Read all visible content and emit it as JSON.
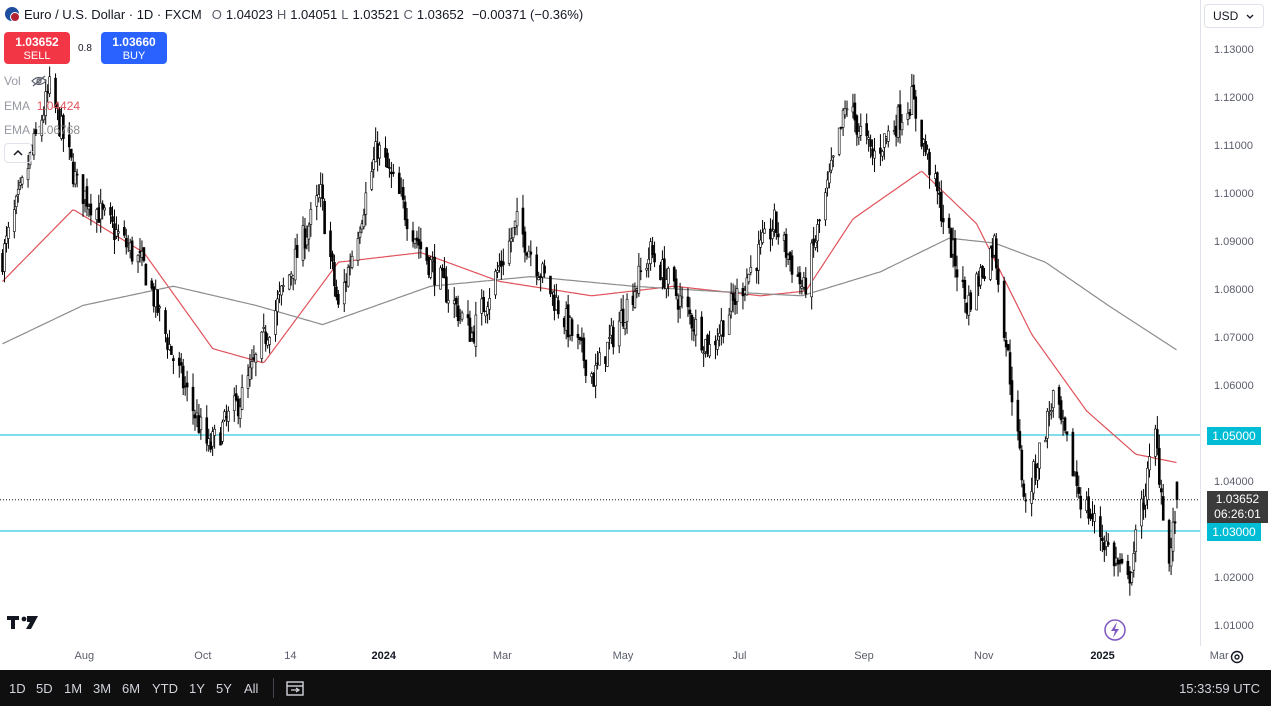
{
  "header": {
    "symbol_title": "Euro / U.S. Dollar · 1D · FXCM",
    "o_label": "O",
    "o_value": "1.04023",
    "h_label": "H",
    "h_value": "1.04051",
    "l_label": "L",
    "l_value": "1.03521",
    "c_label": "C",
    "c_value": "1.03652",
    "change": "−0.00371 (−0.36%)"
  },
  "trade": {
    "sell_price": "1.03652",
    "sell_label": "SELL",
    "spread": "0.8",
    "buy_price": "1.03660",
    "buy_label": "BUY"
  },
  "indicators": {
    "vol_label": "Vol",
    "ema1_label": "EMA",
    "ema1_value": "1.04424",
    "ema2_label": "EMA",
    "ema2_value": "1.06768"
  },
  "currency": {
    "label": "USD"
  },
  "price_tags": {
    "level_upper": "1.05000",
    "current": "1.03652",
    "countdown": "06:26:01",
    "level_lower": "1.03000"
  },
  "colors": {
    "level_line": "#00bcd4",
    "ema_fast": "#e0525a",
    "ema_slow": "#8c8c8c",
    "sell": "#f23645",
    "buy": "#2962ff",
    "candles": "#000000"
  },
  "toolbar": {
    "timeframes": [
      "1D",
      "5D",
      "1M",
      "3M",
      "6M",
      "YTD",
      "1Y",
      "5Y",
      "All"
    ],
    "clock": "15:33:59 UTC"
  },
  "chart_data": {
    "type": "candlestick",
    "title": "Euro / U.S. Dollar · 1D · FXCM",
    "ylim": [
      1.0,
      1.135
    ],
    "y_ticks": [
      "1.13000",
      "1.12000",
      "1.11000",
      "1.10000",
      "1.09000",
      "1.08000",
      "1.07000",
      "1.06000",
      "1.05000",
      "1.04000",
      "1.03000",
      "1.02000",
      "1.01000"
    ],
    "x_tick_labels": [
      "Aug",
      "Oct",
      "14",
      "2024",
      "Mar",
      "May",
      "Jul",
      "Sep",
      "Nov",
      "2025",
      "Mar"
    ],
    "horizontal_levels": [
      1.05,
      1.03
    ],
    "last_price": 1.03652,
    "close_path": [
      {
        "date": "2023-06-20",
        "close": 1.087
      },
      {
        "date": "2023-07-14",
        "close": 1.122
      },
      {
        "date": "2023-07-28",
        "close": 1.102
      },
      {
        "date": "2023-08-31",
        "close": 1.085
      },
      {
        "date": "2023-09-15",
        "close": 1.066
      },
      {
        "date": "2023-10-03",
        "close": 1.047
      },
      {
        "date": "2023-10-20",
        "close": 1.058
      },
      {
        "date": "2023-11-03",
        "close": 1.073
      },
      {
        "date": "2023-11-29",
        "close": 1.1
      },
      {
        "date": "2023-12-08",
        "close": 1.076
      },
      {
        "date": "2023-12-28",
        "close": 1.11
      },
      {
        "date": "2024-01-19",
        "close": 1.089
      },
      {
        "date": "2024-02-14",
        "close": 1.071
      },
      {
        "date": "2024-03-08",
        "close": 1.094
      },
      {
        "date": "2024-04-16",
        "close": 1.062
      },
      {
        "date": "2024-05-15",
        "close": 1.088
      },
      {
        "date": "2024-06-14",
        "close": 1.068
      },
      {
        "date": "2024-07-17",
        "close": 1.094
      },
      {
        "date": "2024-08-01",
        "close": 1.08
      },
      {
        "date": "2024-08-23",
        "close": 1.119
      },
      {
        "date": "2024-09-05",
        "close": 1.108
      },
      {
        "date": "2024-09-25",
        "close": 1.12
      },
      {
        "date": "2024-10-23",
        "close": 1.077
      },
      {
        "date": "2024-11-06",
        "close": 1.09
      },
      {
        "date": "2024-11-22",
        "close": 1.035
      },
      {
        "date": "2024-12-06",
        "close": 1.058
      },
      {
        "date": "2024-12-20",
        "close": 1.037
      },
      {
        "date": "2025-01-13",
        "close": 1.019
      },
      {
        "date": "2025-01-27",
        "close": 1.05
      },
      {
        "date": "2025-02-03",
        "close": 1.023
      },
      {
        "date": "2025-02-07",
        "close": 1.0365
      }
    ],
    "series": [
      {
        "name": "EMA",
        "last_value": 1.04424,
        "points": [
          {
            "date": "2023-06-20",
            "value": 1.082
          },
          {
            "date": "2023-07-26",
            "value": 1.097
          },
          {
            "date": "2023-08-31",
            "value": 1.088
          },
          {
            "date": "2023-10-05",
            "value": 1.068
          },
          {
            "date": "2023-10-31",
            "value": 1.065
          },
          {
            "date": "2023-12-08",
            "value": 1.086
          },
          {
            "date": "2024-01-19",
            "value": 1.088
          },
          {
            "date": "2024-02-28",
            "value": 1.082
          },
          {
            "date": "2024-04-15",
            "value": 1.079
          },
          {
            "date": "2024-05-27",
            "value": 1.081
          },
          {
            "date": "2024-07-10",
            "value": 1.079
          },
          {
            "date": "2024-08-02",
            "value": 1.08
          },
          {
            "date": "2024-08-26",
            "value": 1.095
          },
          {
            "date": "2024-09-30",
            "value": 1.105
          },
          {
            "date": "2024-10-28",
            "value": 1.094
          },
          {
            "date": "2024-11-25",
            "value": 1.071
          },
          {
            "date": "2024-12-23",
            "value": 1.055
          },
          {
            "date": "2025-01-17",
            "value": 1.046
          },
          {
            "date": "2025-02-07",
            "value": 1.04424
          }
        ]
      },
      {
        "name": "EMA",
        "last_value": 1.06768,
        "points": [
          {
            "date": "2023-06-20",
            "value": 1.069
          },
          {
            "date": "2023-07-31",
            "value": 1.077
          },
          {
            "date": "2023-09-15",
            "value": 1.081
          },
          {
            "date": "2023-10-27",
            "value": 1.077
          },
          {
            "date": "2023-11-30",
            "value": 1.073
          },
          {
            "date": "2024-01-24",
            "value": 1.081
          },
          {
            "date": "2024-03-15",
            "value": 1.083
          },
          {
            "date": "2024-05-06",
            "value": 1.081
          },
          {
            "date": "2024-06-14",
            "value": 1.08
          },
          {
            "date": "2024-07-31",
            "value": 1.079
          },
          {
            "date": "2024-09-09",
            "value": 1.084
          },
          {
            "date": "2024-10-14",
            "value": 1.091
          },
          {
            "date": "2024-11-06",
            "value": 1.09
          },
          {
            "date": "2024-12-02",
            "value": 1.086
          },
          {
            "date": "2025-01-03",
            "value": 1.077
          },
          {
            "date": "2025-02-07",
            "value": 1.06768
          }
        ]
      }
    ],
    "grid": false
  }
}
